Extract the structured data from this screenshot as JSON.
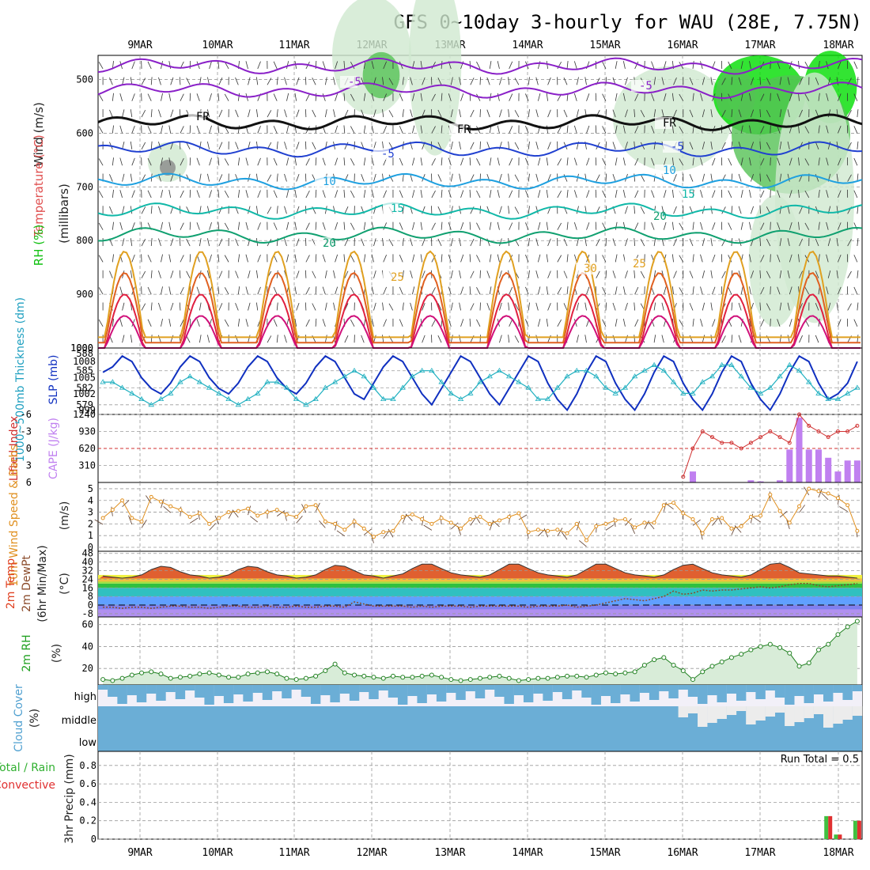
{
  "title": "GFS 0~10day 3-hourly for WAU (28E, 7.75N)",
  "dates": [
    "9MAR",
    "10MAR",
    "11MAR",
    "12MAR",
    "13MAR",
    "14MAR",
    "15MAR",
    "16MAR",
    "17MAR",
    "18MAR"
  ],
  "colors": {
    "grid": "#9a9a9a",
    "rh_green": "#00dd00",
    "rh_mid": "#55c255",
    "rh_light": "#cfe8cf",
    "purple": "#8a20c8",
    "blue": "#2040d0",
    "lightblue": "#1ea0e0",
    "teal": "#10b8a8",
    "green": "#10a070",
    "orange": "#e0a020",
    "darkorange": "#e06020",
    "red": "#e02040",
    "magenta": "#d0107a",
    "cape": "#c080f0",
    "li": "#d03030",
    "slp": "#1030c0",
    "thick": "#20b0c0",
    "windspeed": "#e09020",
    "rhline": "#208020",
    "cloud": "#6baed6",
    "precip_total": "#40c040",
    "precip_conv": "#e03030"
  },
  "panel1": {
    "ylabels": [
      "Wind (m/s)",
      "Temperature (°C)",
      "RH (%)",
      "(millibars)"
    ],
    "ticks": [
      "500",
      "600",
      "700",
      "800",
      "900",
      "1000"
    ],
    "contour_labels": [
      "-5",
      "-5",
      "FR",
      "FR",
      "FR",
      "-5",
      "-5",
      "10",
      "15",
      "20",
      "25",
      "30",
      "30",
      "10",
      "10",
      "-5",
      "15",
      "20",
      "25",
      "30"
    ]
  },
  "panel2": {
    "ylabels": [
      "1000~500mb Thickness (dm)",
      "SLP (mb)"
    ],
    "left_ticks": [
      "588",
      "585",
      "582",
      "579"
    ],
    "right_ticks": [
      "1008",
      "1005",
      "1002",
      "999"
    ],
    "corner": "1000"
  },
  "panel3": {
    "ylabels": [
      "Lifted Index",
      "CAPE (J/kg)"
    ],
    "left_ticks": [
      "-6",
      "-3",
      "0",
      "3",
      "6"
    ],
    "right_ticks": [
      "1240",
      "930",
      "620",
      "310"
    ]
  },
  "panel4": {
    "ylabels": [
      "10m Wind Speed & Barbs",
      "(m/s)"
    ],
    "ticks": [
      "5",
      "4",
      "3",
      "2",
      "1",
      "0"
    ]
  },
  "panel5": {
    "ylabels": [
      "2m Temp",
      "2m DewPt",
      "(6hr Min/Max)",
      "(°C)"
    ],
    "ticks": [
      "48",
      "40",
      "32",
      "24",
      "16",
      "8",
      "0",
      "-8"
    ]
  },
  "panel6": {
    "ylabels": [
      "2m RH",
      "(%)"
    ],
    "ticks": [
      "60",
      "40",
      "20"
    ]
  },
  "panel7": {
    "ylabels": [
      "Cloud Cover",
      "(%)"
    ],
    "levels": [
      "high",
      "middle",
      "low"
    ]
  },
  "panel8": {
    "ylabels": [
      "Total / Rain",
      "Convective",
      "3hr Precip (mm)"
    ],
    "ticks": [
      "0.8",
      "0.6",
      "0.4",
      "0.2",
      "0"
    ],
    "run_total": "Run Total = 0.5"
  },
  "chart_data": {
    "type": "line",
    "slp_mb": [
      1006,
      1007,
      1009,
      1008,
      1005,
      1003,
      1002,
      1004,
      1007,
      1009,
      1008,
      1005,
      1003,
      1002,
      1004,
      1007,
      1009,
      1008,
      1005,
      1003,
      1002,
      1004,
      1007,
      1009,
      1008,
      1005,
      1002,
      1001,
      1004,
      1007,
      1009,
      1008,
      1005,
      1002,
      1000,
      1003,
      1006,
      1009,
      1008,
      1005,
      1002,
      1000,
      1003,
      1006,
      1009,
      1008,
      1004,
      1001,
      999,
      1002,
      1006,
      1009,
      1008,
      1004,
      1001,
      999,
      1002,
      1006,
      1009,
      1008,
      1004,
      1001,
      999,
      1002,
      1006,
      1009,
      1008,
      1004,
      1001,
      999,
      1002,
      1006,
      1009,
      1008,
      1004,
      1001,
      1002,
      1004,
      1008
    ],
    "thickness_dm": [
      583,
      583,
      582,
      581,
      580,
      579,
      580,
      581,
      583,
      584,
      583,
      582,
      581,
      580,
      579,
      580,
      581,
      583,
      583,
      582,
      580,
      579,
      580,
      582,
      583,
      584,
      585,
      584,
      582,
      580,
      580,
      582,
      584,
      585,
      585,
      583,
      581,
      580,
      581,
      583,
      584,
      585,
      584,
      583,
      582,
      580,
      580,
      582,
      584,
      585,
      585,
      584,
      582,
      581,
      582,
      584,
      585,
      586,
      585,
      583,
      581,
      581,
      583,
      584,
      586,
      586,
      584,
      582,
      581,
      582,
      584,
      586,
      585,
      583,
      581,
      580,
      580,
      581,
      582
    ],
    "cape_jkg": [
      0,
      0,
      0,
      0,
      0,
      0,
      0,
      0,
      0,
      0,
      0,
      0,
      0,
      0,
      0,
      0,
      0,
      0,
      0,
      0,
      0,
      0,
      0,
      0,
      0,
      0,
      0,
      0,
      0,
      0,
      0,
      0,
      0,
      0,
      0,
      0,
      0,
      0,
      0,
      0,
      0,
      0,
      0,
      0,
      0,
      0,
      0,
      0,
      0,
      0,
      0,
      0,
      0,
      0,
      0,
      0,
      0,
      0,
      0,
      0,
      0,
      200,
      0,
      0,
      0,
      0,
      0,
      40,
      20,
      0,
      40,
      600,
      1180,
      600,
      600,
      450,
      200,
      400,
      400
    ],
    "lifted_index": [
      6,
      6,
      6,
      6,
      6,
      6,
      6,
      6,
      6,
      6,
      6,
      6,
      6,
      6,
      6,
      6,
      6,
      6,
      6,
      6,
      6,
      6,
      6,
      6,
      6,
      6,
      6,
      6,
      6,
      6,
      6,
      6,
      6,
      6,
      6,
      6,
      6,
      6,
      6,
      6,
      6,
      6,
      6,
      6,
      6,
      6,
      6,
      6,
      6,
      6,
      6,
      6,
      6,
      6,
      6,
      6,
      6,
      6,
      6,
      6,
      5,
      0,
      -3,
      -2,
      -1,
      -1,
      0,
      -1,
      -2,
      -3,
      -2,
      -1,
      -6,
      -4,
      -3,
      -2,
      -3,
      -3,
      -4
    ],
    "wind_speed_ms": [
      2.5,
      3.2,
      4.0,
      2.5,
      2.2,
      4.3,
      3.9,
      3.5,
      3.2,
      2.6,
      2.9,
      2.0,
      2.5,
      3.0,
      3.1,
      3.3,
      2.7,
      3.0,
      3.2,
      2.8,
      2.6,
      3.5,
      3.6,
      2.2,
      2.0,
      1.5,
      2.2,
      1.6,
      0.9,
      1.3,
      1.4,
      2.6,
      2.8,
      2.4,
      2.0,
      2.5,
      2.1,
      1.6,
      2.4,
      2.6,
      2.0,
      2.3,
      2.6,
      2.9,
      1.3,
      1.5,
      1.4,
      1.5,
      1.2,
      2.0,
      0.6,
      1.8,
      2.0,
      2.3,
      2.4,
      1.7,
      2.1,
      2.1,
      3.6,
      3.8,
      2.9,
      2.4,
      1.2,
      2.4,
      2.5,
      1.6,
      1.8,
      2.6,
      2.7,
      4.5,
      3.1,
      2.1,
      3.5,
      5.0,
      4.8,
      4.6,
      4.2,
      3.6,
      1.4
    ],
    "temp_2m_c": [
      27,
      26,
      25,
      26,
      28,
      33,
      36,
      35,
      31,
      28,
      27,
      25,
      26,
      28,
      33,
      36,
      35,
      31,
      28,
      27,
      25,
      26,
      28,
      33,
      37,
      36,
      32,
      28,
      27,
      25,
      27,
      29,
      34,
      38,
      38,
      34,
      30,
      28,
      27,
      26,
      28,
      33,
      38,
      38,
      34,
      30,
      28,
      27,
      26,
      28,
      33,
      38,
      38,
      34,
      30,
      28,
      27,
      26,
      28,
      33,
      37,
      38,
      34,
      30,
      28,
      27,
      26,
      28,
      33,
      38,
      39,
      35,
      30,
      29,
      28,
      27,
      27,
      26,
      25
    ],
    "dewpt_2m_c": [
      -2,
      -2,
      -3,
      -2,
      -2,
      -3,
      -2,
      -1,
      -1,
      -2,
      -2,
      -3,
      -2,
      -1,
      -1,
      -2,
      -2,
      -1,
      -2,
      -2,
      -1,
      -2,
      -2,
      -1,
      -1,
      -2,
      3,
      1,
      -1,
      -1,
      -1,
      -1,
      -2,
      -1,
      -2,
      -1,
      -1,
      -1,
      -2,
      -1,
      -1,
      -1,
      -1,
      -1,
      -2,
      -1,
      -1,
      -1,
      0,
      -2,
      -1,
      0,
      2,
      4,
      6,
      5,
      4,
      6,
      8,
      13,
      10,
      11,
      14,
      13,
      14,
      14,
      15,
      16,
      17,
      16,
      17,
      19,
      20,
      20,
      18,
      17,
      18,
      19,
      20
    ],
    "rh_2m_pct": [
      10,
      9,
      11,
      14,
      16,
      17,
      15,
      11,
      12,
      13,
      15,
      16,
      14,
      12,
      12,
      15,
      16,
      17,
      15,
      11,
      10,
      11,
      13,
      18,
      24,
      16,
      14,
      13,
      12,
      11,
      13,
      12,
      12,
      13,
      14,
      12,
      10,
      9,
      10,
      11,
      12,
      13,
      11,
      9,
      10,
      11,
      11,
      12,
      13,
      13,
      12,
      14,
      16,
      15,
      16,
      17,
      23,
      28,
      30,
      23,
      18,
      10,
      17,
      22,
      26,
      30,
      33,
      37,
      40,
      42,
      39,
      34,
      22,
      25,
      37,
      42,
      51,
      58,
      63
    ],
    "precip_total_mm": [
      0,
      0,
      0,
      0,
      0,
      0,
      0,
      0,
      0,
      0,
      0,
      0,
      0,
      0,
      0,
      0,
      0,
      0,
      0,
      0,
      0,
      0,
      0,
      0,
      0,
      0,
      0,
      0,
      0,
      0,
      0,
      0,
      0,
      0,
      0,
      0,
      0,
      0,
      0,
      0,
      0,
      0,
      0,
      0,
      0,
      0,
      0,
      0,
      0,
      0,
      0,
      0,
      0,
      0,
      0,
      0,
      0,
      0,
      0,
      0,
      0,
      0,
      0,
      0,
      0,
      0,
      0,
      0,
      0,
      0,
      0,
      0,
      0,
      0,
      0,
      0.25,
      0.05,
      0,
      0.2
    ],
    "precip_conv_mm": [
      0,
      0,
      0,
      0,
      0,
      0,
      0,
      0,
      0,
      0,
      0,
      0,
      0,
      0,
      0,
      0,
      0,
      0,
      0,
      0,
      0,
      0,
      0,
      0,
      0,
      0,
      0,
      0,
      0,
      0,
      0,
      0,
      0,
      0,
      0,
      0,
      0,
      0,
      0,
      0,
      0,
      0,
      0,
      0,
      0,
      0,
      0,
      0,
      0,
      0,
      0,
      0,
      0,
      0,
      0,
      0,
      0,
      0,
      0,
      0,
      0,
      0,
      0,
      0,
      0,
      0,
      0,
      0,
      0,
      0,
      0,
      0,
      0,
      0,
      0,
      0.25,
      0.05,
      0,
      0.2
    ]
  }
}
